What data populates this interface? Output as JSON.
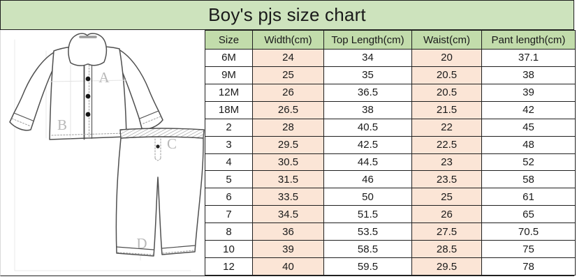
{
  "title": "Boy's pjs size chart",
  "colors": {
    "title_bg": "#cde3bd",
    "header_bg": "#c2dcab",
    "stripe_bg": "#fbe5d6",
    "border": "#1f1f1f",
    "text": "#1a1a1a",
    "label_gray": "#b8b8b8"
  },
  "diagram": {
    "labels": [
      "A",
      "B",
      "C",
      "D"
    ]
  },
  "table": {
    "headers": [
      "Size",
      "Width(cm)",
      "Top Length(cm)",
      "Waist(cm)",
      "Pant length(cm)"
    ],
    "rows": [
      [
        "6M",
        "24",
        "34",
        "20",
        "37.1"
      ],
      [
        "9M",
        "25",
        "35",
        "20.5",
        "38"
      ],
      [
        "12M",
        "26",
        "36.5",
        "20.5",
        "39"
      ],
      [
        "18M",
        "26.5",
        "38",
        "21.5",
        "42"
      ],
      [
        "2",
        "28",
        "40.5",
        "22",
        "45"
      ],
      [
        "3",
        "29.5",
        "42.5",
        "22.5",
        "48"
      ],
      [
        "4",
        "30.5",
        "44.5",
        "23",
        "52"
      ],
      [
        "5",
        "31.5",
        "46",
        "23.5",
        "58"
      ],
      [
        "6",
        "33.5",
        "50",
        "25",
        "61"
      ],
      [
        "7",
        "34.5",
        "51.5",
        "26",
        "65"
      ],
      [
        "8",
        "36",
        "53.5",
        "27.5",
        "70.5"
      ],
      [
        "10",
        "39",
        "58.5",
        "28.5",
        "75"
      ],
      [
        "12",
        "40",
        "59.5",
        "29.5",
        "78"
      ]
    ]
  },
  "chart_data": {
    "type": "table",
    "title": "Boy's pjs size chart",
    "columns": [
      "Size",
      "Width(cm)",
      "Top Length(cm)",
      "Waist(cm)",
      "Pant length(cm)"
    ],
    "rows": [
      [
        "6M",
        24,
        34,
        20,
        37.1
      ],
      [
        "9M",
        25,
        35,
        20.5,
        38
      ],
      [
        "12M",
        26,
        36.5,
        20.5,
        39
      ],
      [
        "18M",
        26.5,
        38,
        21.5,
        42
      ],
      [
        "2",
        28,
        40.5,
        22,
        45
      ],
      [
        "3",
        29.5,
        42.5,
        22.5,
        48
      ],
      [
        "4",
        30.5,
        44.5,
        23,
        52
      ],
      [
        "5",
        31.5,
        46,
        23.5,
        58
      ],
      [
        "6",
        33.5,
        50,
        25,
        61
      ],
      [
        "7",
        34.5,
        51.5,
        26,
        65
      ],
      [
        "8",
        36,
        53.5,
        27.5,
        70.5
      ],
      [
        "10",
        39,
        58.5,
        28.5,
        75
      ],
      [
        "12",
        40,
        59.5,
        29.5,
        78
      ]
    ]
  }
}
